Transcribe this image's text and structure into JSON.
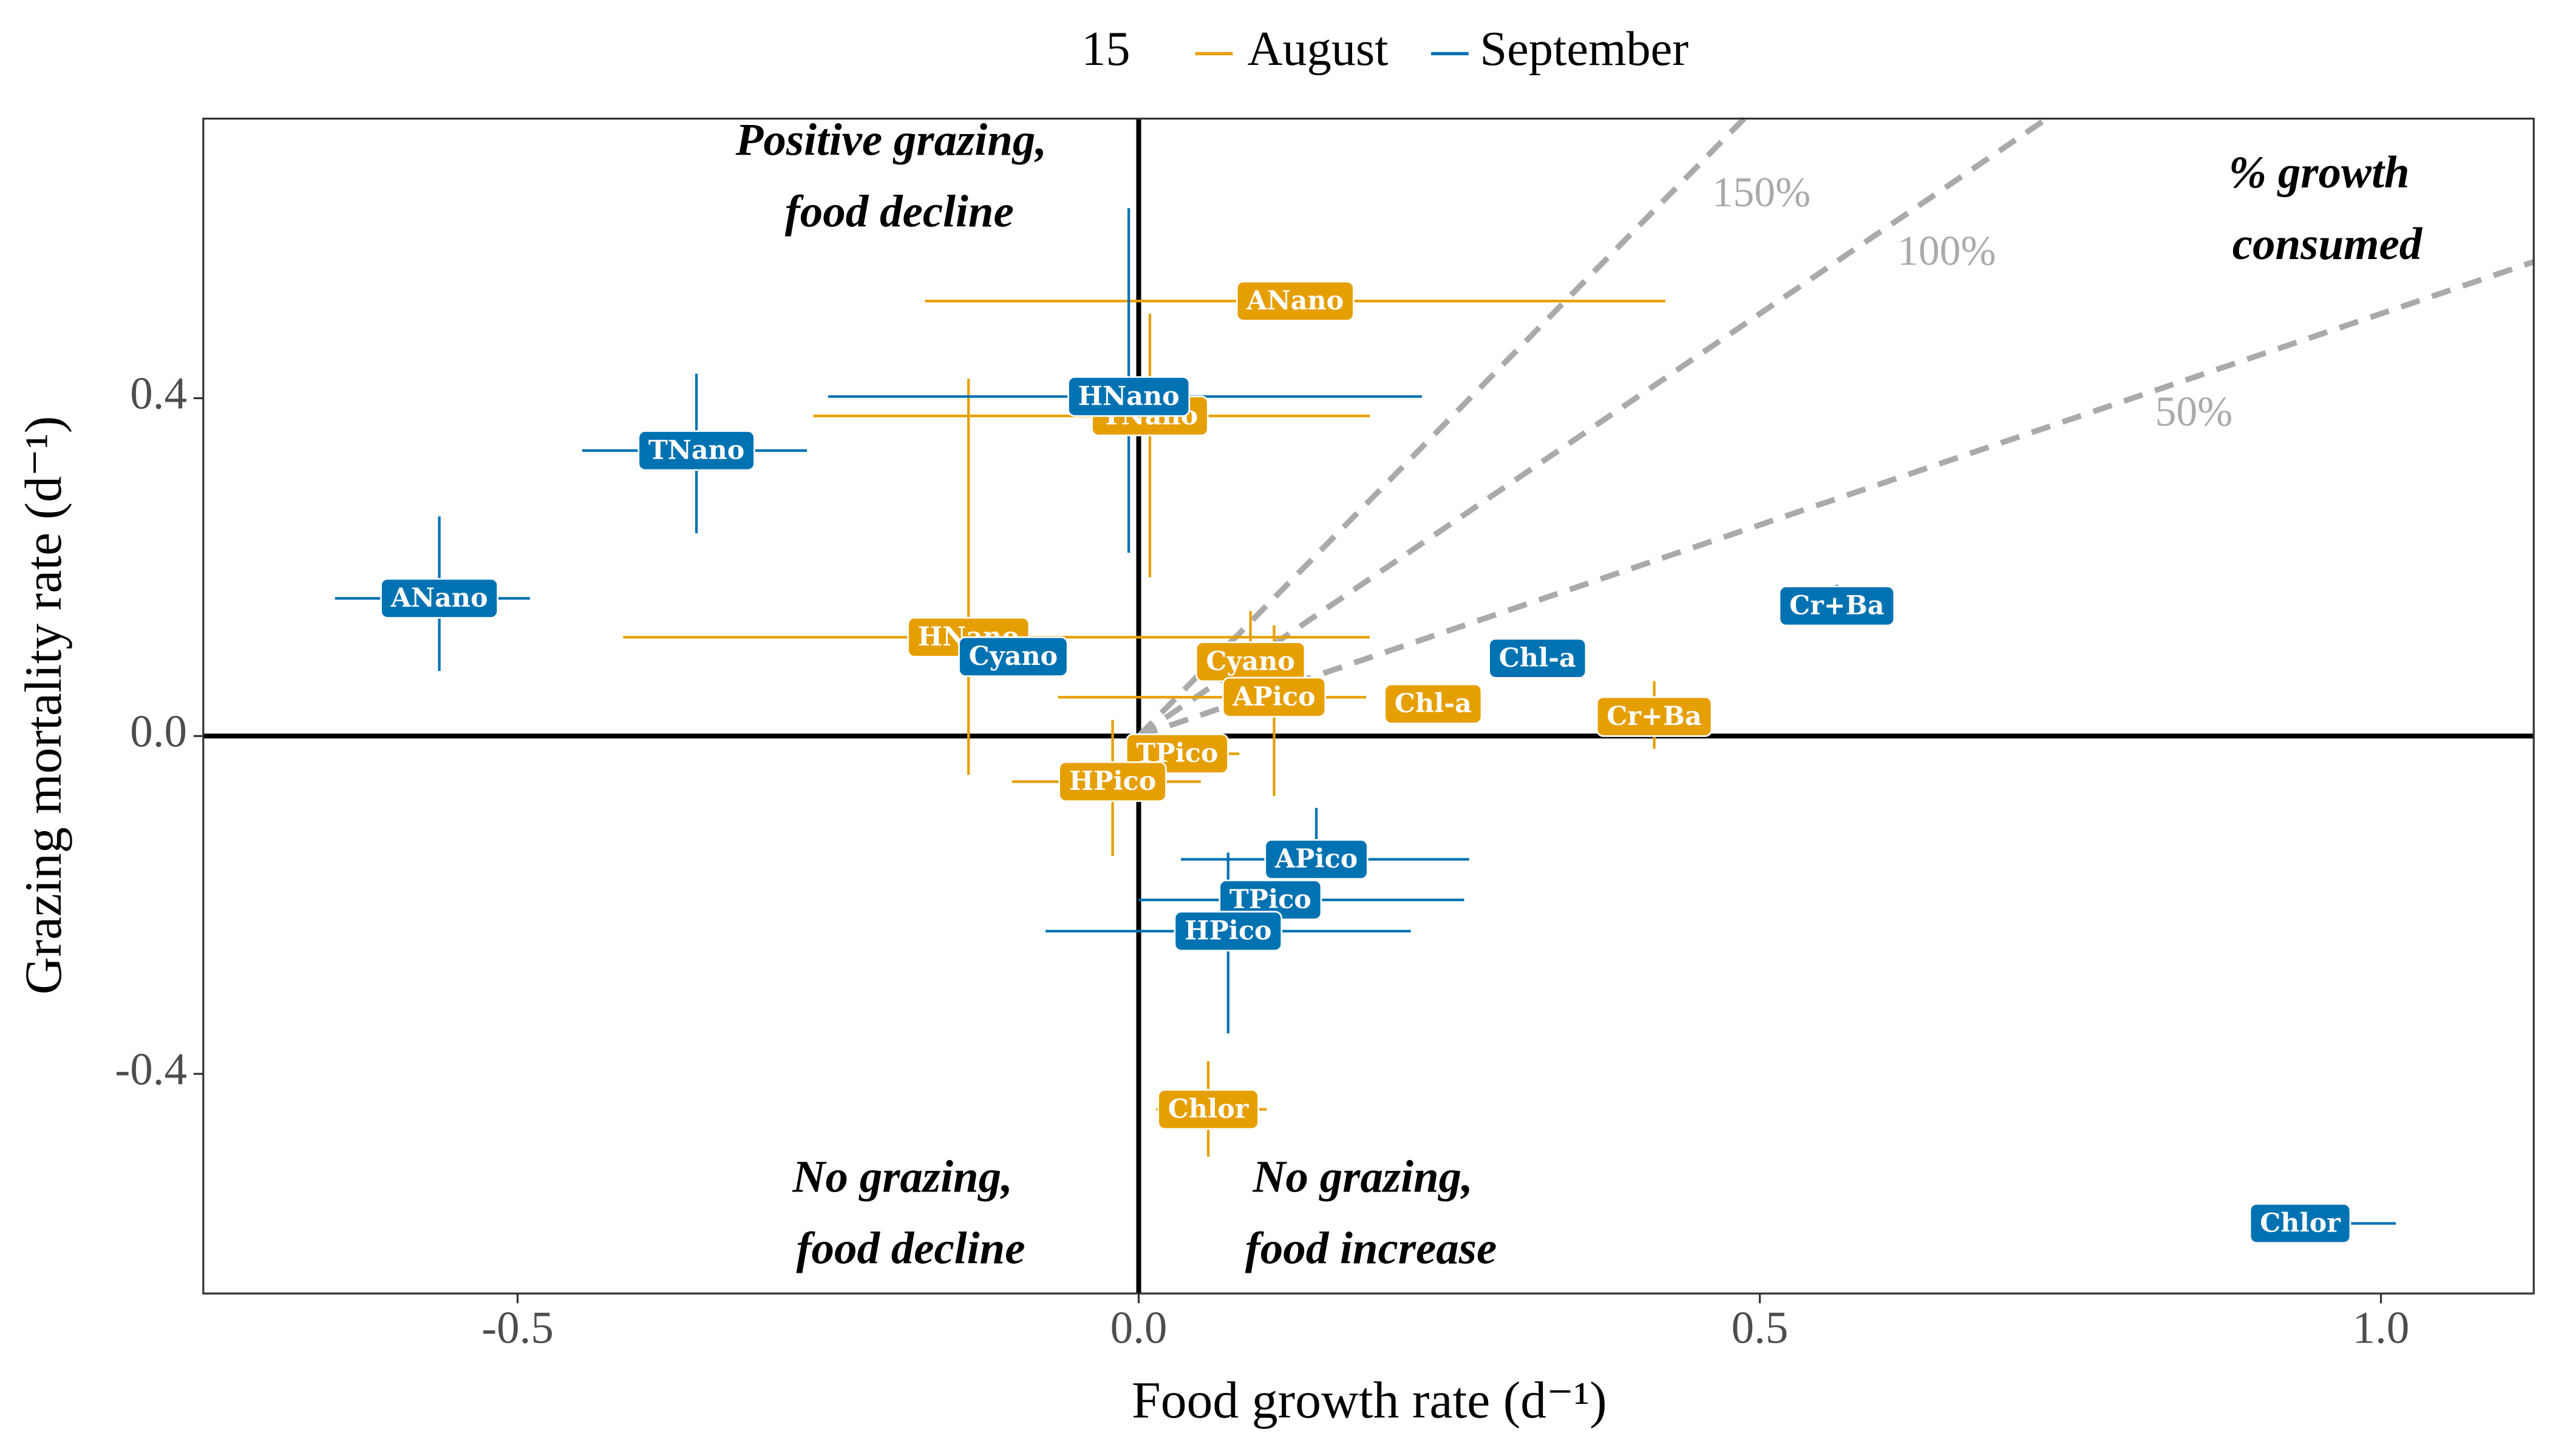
{
  "chart_data": {
    "type": "errorbar-scatter",
    "legend_title": "15",
    "xlabel": "Food growth rate  (d⁻¹)",
    "ylabel": "Grazing mortality rate  (d⁻¹)",
    "xlim": [
      -0.753,
      1.123
    ],
    "ylim": [
      -0.66,
      0.731
    ],
    "xticks": [
      -0.5,
      {
        "value": 0,
        "label": "0.0"
      },
      0.5,
      {
        "value": 1,
        "label": "1.0"
      }
    ],
    "yticks": [
      -0.4,
      {
        "value": 0,
        "label": "0.0"
      },
      0.4
    ],
    "zero_lines": true,
    "grid": false,
    "ratio_lines": [
      {
        "slope": 1.5,
        "label": "150%"
      },
      {
        "slope": 1,
        "label": "100%"
      },
      {
        "slope": 0.5,
        "label": "50%"
      }
    ],
    "annotations": [
      [
        "Positive grazing,",
        "food decline"
      ],
      [
        "% growth",
        "consumed"
      ],
      [
        "No grazing,",
        "food decline"
      ],
      [
        "No grazing,",
        "food increase"
      ]
    ],
    "series": [
      {
        "name": "August",
        "color": "#E69F00",
        "labels": [
          "ANano",
          "TNano",
          "HNano",
          "Cyano",
          "APico",
          "Chl-a",
          "Cr+Ba",
          "TPico",
          "HPico",
          "Chlor"
        ],
        "x": [
          0.126,
          0.009,
          -0.137,
          0.09,
          0.109,
          0.237,
          0.415,
          0.031,
          -0.021,
          0.056
        ],
        "y": [
          0.515,
          0.379,
          0.117,
          0.088,
          0.046,
          0.038,
          0.023,
          -0.021,
          -0.054,
          -0.442
        ],
        "xmin": [
          -0.172,
          -0.262,
          -0.415,
          0.07,
          -0.065,
          0.22,
          0.4,
          -0.007,
          -0.102,
          0.014
        ],
        "xmax": [
          0.424,
          0.186,
          0.186,
          0.11,
          0.183,
          0.255,
          0.43,
          0.081,
          0.05,
          0.103
        ],
        "ymin": [
          0.505,
          0.188,
          -0.046,
          0.025,
          -0.071,
          0.03,
          -0.015,
          -0.035,
          -0.142,
          -0.498
        ],
        "ymax": [
          0.525,
          0.5,
          0.423,
          0.148,
          0.131,
          0.045,
          0.065,
          -0.007,
          0.019,
          -0.385
        ]
      },
      {
        "name": "September",
        "color": "#0072B2",
        "labels": [
          "ANano",
          "TNano",
          "HNano",
          "Cyano",
          "Chl-a",
          "Cr+Ba",
          "APico",
          "TPico",
          "HPico",
          "Chlor"
        ],
        "x": [
          -0.563,
          -0.356,
          -0.008,
          -0.101,
          0.321,
          0.562,
          0.143,
          0.106,
          0.072,
          0.935
        ],
        "y": [
          0.163,
          0.338,
          0.402,
          0.094,
          0.092,
          0.154,
          -0.146,
          -0.194,
          -0.231,
          -0.577
        ],
        "xmin": [
          -0.647,
          -0.448,
          -0.25,
          -0.11,
          0.31,
          0.55,
          0.034,
          0,
          -0.075,
          0.895
        ],
        "xmax": [
          -0.49,
          -0.267,
          0.228,
          -0.09,
          0.33,
          0.575,
          0.266,
          0.262,
          0.219,
          1.012
        ],
        "ymin": [
          0.077,
          0.24,
          0.217,
          0.085,
          0.085,
          0.131,
          -0.212,
          -0.215,
          -0.352,
          -0.59
        ],
        "ymax": [
          0.26,
          0.429,
          0.625,
          0.1,
          0.1,
          0.179,
          -0.085,
          -0.175,
          -0.138,
          -0.565
        ]
      }
    ]
  }
}
